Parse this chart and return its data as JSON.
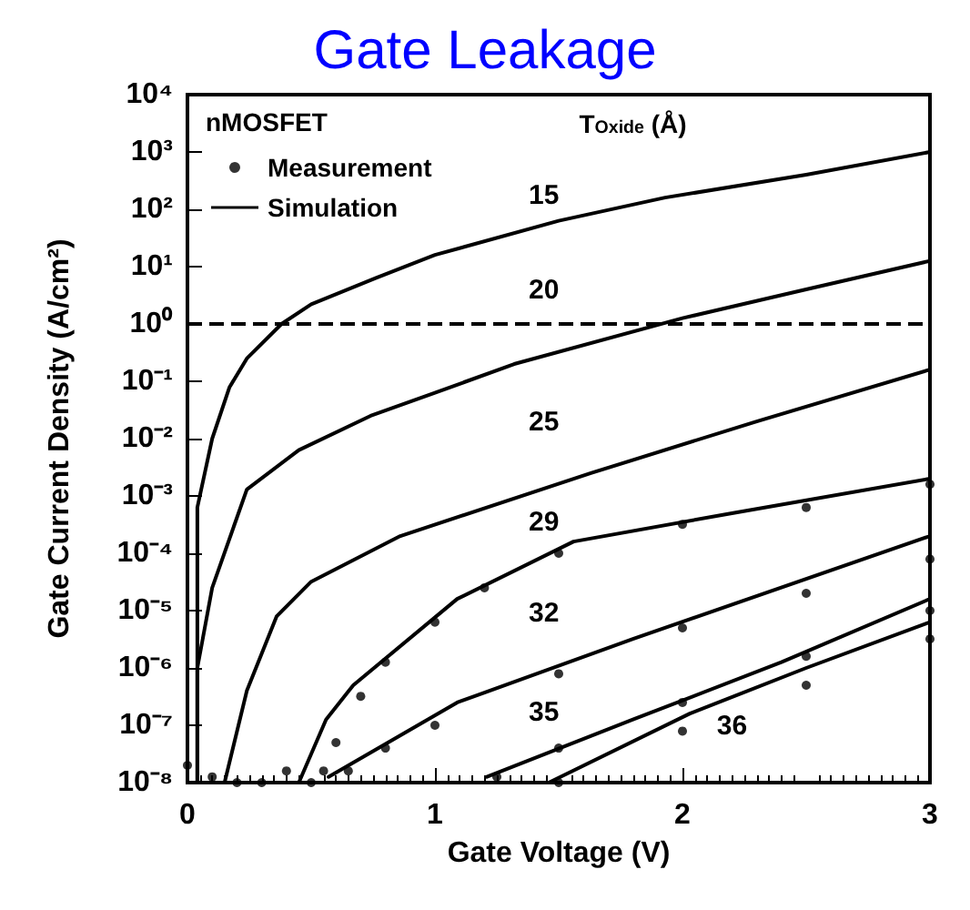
{
  "chart_data": {
    "type": "line",
    "title": "Gate Leakage",
    "xlabel": "Gate Voltage (V)",
    "ylabel": "Gate Current Density (A/cm²)",
    "legend_title": "nMOSFET",
    "xlim": [
      0,
      3
    ],
    "xticks": [
      0,
      1,
      2,
      3
    ],
    "ylim": [
      1e-08,
      10000
    ],
    "log": "y",
    "yticks": [
      {
        "value": 1e-08,
        "label": "10⁻⁸"
      },
      {
        "value": 1e-07,
        "label": "10⁻⁷"
      },
      {
        "value": 1e-06,
        "label": "10⁻⁶"
      },
      {
        "value": 1e-05,
        "label": "10⁻⁵"
      },
      {
        "value": 0.0001,
        "label": "10⁻⁴"
      },
      {
        "value": 0.001,
        "label": "10⁻³"
      },
      {
        "value": 0.01,
        "label": "10⁻²"
      },
      {
        "value": 0.1,
        "label": "10⁻¹"
      },
      {
        "value": 1,
        "label": "10⁰"
      },
      {
        "value": 10,
        "label": "10¹"
      },
      {
        "value": 100,
        "label": "10²"
      },
      {
        "value": 1000,
        "label": "10³"
      },
      {
        "value": 10000,
        "label": "10⁴"
      }
    ],
    "grid": false,
    "legend": "top left",
    "line_style": "solid",
    "marker": "none",
    "ref_lines": [
      {
        "axis": "y",
        "value": 1,
        "color": "#000000",
        "line_style": "dashed"
      }
    ],
    "annotations": [
      "T$_{Oxide}$ (Å)",
      "15",
      "20",
      "25",
      "29",
      "32",
      "35",
      "36"
    ],
    "series": [
      {
        "name": "Measurement",
        "type": "scatter",
        "marker": "circle",
        "color": "#000000",
        "x": [
          0,
          0.1,
          0.2,
          0.3,
          0.4,
          0.5,
          0.55,
          0.6,
          0.7,
          0.8,
          1,
          1.2,
          1.5,
          2,
          2.5,
          3,
          0.65,
          0.8,
          1,
          1.5,
          2,
          2.5,
          3,
          1.25,
          1.5,
          2,
          2.5,
          3,
          1.5,
          2,
          2.5,
          3
        ],
        "values": [
          2e-08,
          1.26e-08,
          1e-08,
          1e-08,
          1.6e-08,
          1e-08,
          1.6e-08,
          5e-08,
          3.2e-07,
          1.26e-06,
          6.3e-06,
          2.5e-05,
          0.0001,
          0.00032,
          0.00063,
          0.0016,
          1.6e-08,
          4e-08,
          1e-07,
          7.9e-07,
          5e-06,
          2e-05,
          7.9e-05,
          1.26e-08,
          4e-08,
          2.5e-07,
          1.6e-06,
          1e-05,
          1e-08,
          7.9e-08,
          5e-07,
          3.2e-06
        ]
      },
      {
        "name": "Simulation",
        "color": "#000000",
        "x": [
          0.04,
          0.04,
          0.1,
          0.17,
          0.24,
          0.38,
          0.5,
          0.76,
          1,
          1.5,
          1.93,
          2.5,
          3
        ],
        "values": [
          1e-08,
          0.00063,
          0.01,
          0.079,
          0.25,
          1,
          2.2,
          6.3,
          16,
          63,
          160,
          400,
          1000
        ]
      },
      {
        "color": "#000000",
        "x": [
          0.04,
          0.04,
          0.1,
          0.24,
          0.45,
          0.74,
          1,
          1.32,
          2,
          2.5,
          3
        ],
        "values": [
          1e-08,
          1e-06,
          2.5e-05,
          0.0013,
          0.0063,
          0.025,
          0.063,
          0.2,
          1.26,
          4,
          12.6
        ]
      },
      {
        "color": "#000000",
        "x": [
          0.15,
          0.24,
          0.36,
          0.5,
          0.86,
          1.63,
          2.3,
          3
        ],
        "values": [
          1e-08,
          4e-07,
          7.9e-06,
          3.2e-05,
          0.0002,
          0.0025,
          0.02,
          0.16
        ]
      },
      {
        "color": "#000000",
        "x": [
          0.45,
          0.56,
          0.67,
          1.09,
          1.56,
          2.2,
          3
        ],
        "values": [
          1e-08,
          1.26e-07,
          5e-07,
          1.6e-05,
          0.00016,
          0.0005,
          0.002
        ]
      },
      {
        "color": "#000000",
        "x": [
          0.57,
          1.09,
          1.8,
          3
        ],
        "values": [
          1.26e-08,
          2.5e-07,
          3.2e-06,
          0.0002
        ]
      },
      {
        "color": "#000000",
        "x": [
          1.21,
          1.8,
          2.4,
          3
        ],
        "values": [
          1.26e-08,
          1.26e-07,
          1.26e-06,
          1.6e-05
        ]
      },
      {
        "color": "#000000",
        "x": [
          1.46,
          2.03,
          2.5,
          3
        ],
        "values": [
          1e-08,
          1.6e-07,
          1e-06,
          6.3e-06
        ]
      }
    ]
  }
}
